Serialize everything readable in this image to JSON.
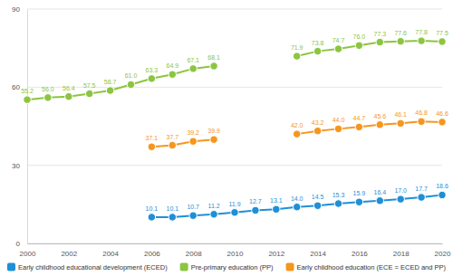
{
  "chart_data": {
    "type": "line",
    "x": [
      2000,
      2001,
      2002,
      2003,
      2004,
      2005,
      2006,
      2007,
      2008,
      2009,
      2010,
      2011,
      2012,
      2013,
      2014,
      2015,
      2016,
      2017,
      2018,
      2019,
      2020
    ],
    "xlim": [
      2000,
      2020
    ],
    "xticks": [
      2000,
      2002,
      2004,
      2006,
      2008,
      2010,
      2012,
      2014,
      2016,
      2018,
      2020
    ],
    "ylim": [
      0,
      90
    ],
    "yticks": [
      0,
      30,
      60,
      90
    ],
    "grid": true,
    "legend": "bottom",
    "data_labels": true,
    "series": [
      {
        "name": "Early childhood educational development (ECED)",
        "color": "#1f8fd8",
        "marker": "circle",
        "values": [
          null,
          null,
          null,
          null,
          null,
          null,
          10.1,
          10.1,
          10.7,
          11.2,
          11.9,
          12.7,
          13.1,
          14.0,
          14.5,
          15.3,
          15.9,
          16.4,
          17.0,
          17.7,
          18.6
        ],
        "value_labels": [
          null,
          null,
          null,
          null,
          null,
          null,
          "10.1",
          "10.1",
          "10.7",
          "11.2",
          "11.9",
          "12.7",
          "13.1",
          "14.0",
          "14.5",
          "15.3",
          "15.9",
          "16.4",
          "17.0",
          "17.7",
          "18.6"
        ]
      },
      {
        "name": "Pre-primary education (PP)",
        "color": "#8cc540",
        "marker": "circle",
        "values": [
          55.2,
          56.0,
          56.4,
          57.5,
          58.7,
          61.0,
          63.3,
          64.9,
          67.1,
          68.1,
          null,
          null,
          null,
          71.9,
          73.8,
          74.7,
          76.0,
          77.3,
          77.6,
          77.8,
          77.5
        ],
        "value_labels": [
          "55.2",
          "56.0",
          "56.4",
          "57.5",
          "58.7",
          "61.0",
          "63.3",
          "64.9",
          "67.1",
          "68.1",
          null,
          null,
          null,
          "71.9",
          "73.8",
          "74.7",
          "76.0",
          "77.3",
          "77.6",
          "77.8",
          "77.5"
        ]
      },
      {
        "name": "Early childhood education (ECE = ECED and PP)",
        "color": "#f5961e",
        "marker": "circle",
        "values": [
          null,
          null,
          null,
          null,
          null,
          null,
          37.1,
          37.7,
          39.2,
          39.9,
          null,
          null,
          null,
          42.0,
          43.2,
          44.0,
          44.7,
          45.6,
          46.1,
          46.8,
          46.6
        ],
        "value_labels": [
          null,
          null,
          null,
          null,
          null,
          null,
          "37.1",
          "37.7",
          "39.2",
          "39.9",
          null,
          null,
          null,
          "42.0",
          "43.2",
          "44.0",
          "44.7",
          "45.6",
          "46.1",
          "46.8",
          "46.6"
        ]
      }
    ]
  }
}
